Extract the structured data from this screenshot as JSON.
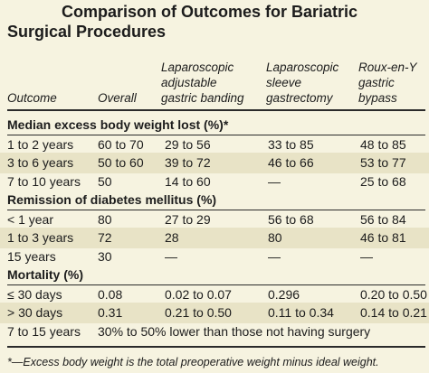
{
  "title": "Comparison of Outcomes for Bariatric Surgical Procedures",
  "headers": {
    "outcome": "Outcome",
    "overall": "Overall",
    "lagb": [
      "Laparoscopic",
      "adjustable",
      "gastric banding"
    ],
    "lsg": [
      "Laparoscopic",
      "sleeve",
      "gastrectomy"
    ],
    "rygb": [
      "Roux-en-Y",
      "gastric",
      "bypass"
    ]
  },
  "sections": [
    {
      "title": "Median excess body weight lost (%)*",
      "rows": [
        [
          "1 to 2 years",
          "60 to 70",
          "29 to 56",
          "33 to 85",
          "48 to 85"
        ],
        [
          "3 to 6 years",
          "50 to 60",
          "39 to 72",
          "46 to 66",
          "53 to 77"
        ],
        [
          "7 to 10 years",
          "50",
          "14 to 60",
          "—",
          "25 to 68"
        ]
      ]
    },
    {
      "title": "Remission of diabetes mellitus (%)",
      "rows": [
        [
          "< 1 year",
          "80",
          "27 to 29",
          "56 to 68",
          "56 to 84"
        ],
        [
          "1 to 3 years",
          "72",
          "28",
          "80",
          "46 to 81"
        ],
        [
          "15 years",
          "30",
          "—",
          "—",
          "—"
        ]
      ]
    },
    {
      "title": "Mortality (%)",
      "rows": [
        [
          "≤ 30 days",
          "0.08",
          "0.02 to 0.07",
          "0.296",
          "0.20 to 0.50"
        ],
        [
          "> 30 days",
          "0.31",
          "0.21 to 0.50",
          "0.11 to 0.34",
          "0.14 to 0.21"
        ]
      ],
      "span_row": [
        "7 to 15 years",
        "30% to 50% lower than those not having surgery"
      ]
    }
  ],
  "footnote": "*—Excess body weight is the total preoperative weight minus ideal weight.",
  "colors": {
    "background": "#f6f3e0",
    "band": "#e8e3c6",
    "rule": "#2a2a2a"
  }
}
